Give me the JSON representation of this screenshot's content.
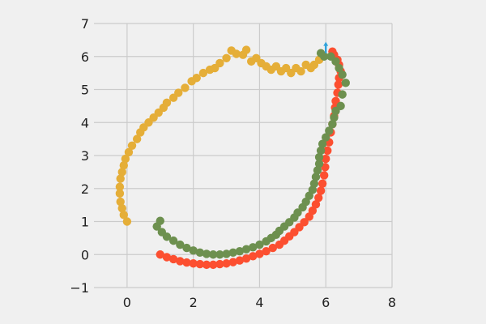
{
  "chart_data": {
    "type": "scatter",
    "title": "",
    "xlabel": "",
    "ylabel": "",
    "xlim": [
      -1,
      8
    ],
    "ylim": [
      -1,
      7
    ],
    "xticks": [
      "0",
      "2",
      "4",
      "6",
      "8"
    ],
    "yticks": [
      "−1",
      "0",
      "1",
      "2",
      "3",
      "4",
      "5",
      "6",
      "7"
    ],
    "xtick_values": [
      0,
      2,
      4,
      6,
      8
    ],
    "ytick_values": [
      -1,
      0,
      1,
      2,
      3,
      4,
      5,
      6,
      7
    ],
    "grid": true,
    "aspect": "equal",
    "series": [
      {
        "color": "#fc4f30",
        "points": [
          [
            1.0,
            0.0
          ],
          [
            1.2,
            -0.08
          ],
          [
            1.4,
            -0.14
          ],
          [
            1.6,
            -0.2
          ],
          [
            1.8,
            -0.24
          ],
          [
            2.0,
            -0.27
          ],
          [
            2.2,
            -0.29
          ],
          [
            2.4,
            -0.31
          ],
          [
            2.6,
            -0.31
          ],
          [
            2.8,
            -0.29
          ],
          [
            3.0,
            -0.27
          ],
          [
            3.2,
            -0.23
          ],
          [
            3.4,
            -0.18
          ],
          [
            3.6,
            -0.12
          ],
          [
            3.8,
            -0.05
          ],
          [
            4.0,
            0.02
          ],
          [
            4.2,
            0.1
          ],
          [
            4.4,
            0.2
          ],
          [
            4.6,
            0.3
          ],
          [
            4.75,
            0.42
          ],
          [
            4.9,
            0.55
          ],
          [
            5.05,
            0.68
          ],
          [
            5.2,
            0.83
          ],
          [
            5.35,
            0.98
          ],
          [
            5.5,
            1.15
          ],
          [
            5.6,
            1.33
          ],
          [
            5.7,
            1.52
          ],
          [
            5.78,
            1.72
          ],
          [
            5.85,
            1.93
          ],
          [
            5.9,
            2.15
          ],
          [
            5.95,
            2.4
          ],
          [
            5.98,
            2.65
          ],
          [
            6.0,
            2.9
          ],
          [
            6.05,
            3.15
          ],
          [
            6.1,
            3.4
          ],
          [
            6.15,
            3.7
          ],
          [
            6.2,
            3.95
          ],
          [
            6.25,
            4.2
          ],
          [
            6.28,
            4.45
          ],
          [
            6.3,
            4.65
          ],
          [
            6.35,
            4.9
          ],
          [
            6.38,
            5.15
          ],
          [
            6.4,
            5.35
          ],
          [
            6.45,
            5.55
          ],
          [
            6.4,
            5.75
          ],
          [
            6.35,
            5.9
          ],
          [
            6.25,
            6.05
          ],
          [
            6.2,
            6.15
          ]
        ]
      },
      {
        "color": "#e5ae38",
        "points": [
          [
            0.0,
            1.0
          ],
          [
            -0.1,
            1.2
          ],
          [
            -0.15,
            1.4
          ],
          [
            -0.2,
            1.6
          ],
          [
            -0.22,
            1.85
          ],
          [
            -0.22,
            2.05
          ],
          [
            -0.2,
            2.3
          ],
          [
            -0.15,
            2.5
          ],
          [
            -0.1,
            2.7
          ],
          [
            -0.05,
            2.9
          ],
          [
            0.05,
            3.1
          ],
          [
            0.15,
            3.3
          ],
          [
            0.3,
            3.5
          ],
          [
            0.4,
            3.7
          ],
          [
            0.5,
            3.85
          ],
          [
            0.65,
            4.0
          ],
          [
            0.8,
            4.15
          ],
          [
            0.95,
            4.3
          ],
          [
            1.1,
            4.45
          ],
          [
            1.2,
            4.6
          ],
          [
            1.4,
            4.75
          ],
          [
            1.55,
            4.9
          ],
          [
            1.75,
            5.05
          ],
          [
            1.95,
            5.25
          ],
          [
            2.1,
            5.35
          ],
          [
            2.3,
            5.5
          ],
          [
            2.5,
            5.6
          ],
          [
            2.65,
            5.65
          ],
          [
            2.8,
            5.8
          ],
          [
            3.0,
            5.95
          ],
          [
            3.15,
            6.18
          ],
          [
            3.3,
            6.08
          ],
          [
            3.5,
            6.05
          ],
          [
            3.6,
            6.2
          ],
          [
            3.75,
            5.85
          ],
          [
            3.9,
            5.95
          ],
          [
            4.05,
            5.8
          ],
          [
            4.2,
            5.7
          ],
          [
            4.35,
            5.6
          ],
          [
            4.5,
            5.7
          ],
          [
            4.65,
            5.55
          ],
          [
            4.8,
            5.65
          ],
          [
            4.95,
            5.5
          ],
          [
            5.1,
            5.65
          ],
          [
            5.25,
            5.55
          ],
          [
            5.4,
            5.75
          ],
          [
            5.55,
            5.65
          ],
          [
            5.65,
            5.75
          ],
          [
            5.8,
            5.9
          ],
          [
            5.9,
            6.0
          ]
        ]
      },
      {
        "color": "#6d904f",
        "points": [
          [
            1.0,
            1.02
          ],
          [
            0.9,
            0.85
          ],
          [
            1.05,
            0.68
          ],
          [
            1.2,
            0.54
          ],
          [
            1.4,
            0.42
          ],
          [
            1.6,
            0.3
          ],
          [
            1.8,
            0.2
          ],
          [
            2.0,
            0.12
          ],
          [
            2.2,
            0.06
          ],
          [
            2.4,
            0.02
          ],
          [
            2.6,
            0.0
          ],
          [
            2.8,
            0.0
          ],
          [
            3.0,
            0.02
          ],
          [
            3.2,
            0.06
          ],
          [
            3.4,
            0.1
          ],
          [
            3.6,
            0.16
          ],
          [
            3.8,
            0.22
          ],
          [
            4.0,
            0.3
          ],
          [
            4.2,
            0.4
          ],
          [
            4.35,
            0.5
          ],
          [
            4.5,
            0.6
          ],
          [
            4.6,
            0.72
          ],
          [
            4.75,
            0.85
          ],
          [
            4.9,
            0.98
          ],
          [
            5.05,
            1.12
          ],
          [
            5.15,
            1.27
          ],
          [
            5.3,
            1.43
          ],
          [
            5.4,
            1.6
          ],
          [
            5.5,
            1.78
          ],
          [
            5.6,
            1.96
          ],
          [
            5.65,
            2.15
          ],
          [
            5.7,
            2.35
          ],
          [
            5.75,
            2.55
          ],
          [
            5.8,
            2.75
          ],
          [
            5.8,
            2.95
          ],
          [
            5.85,
            3.15
          ],
          [
            5.9,
            3.35
          ],
          [
            6.0,
            3.55
          ],
          [
            6.1,
            3.75
          ],
          [
            6.2,
            3.95
          ],
          [
            6.25,
            4.15
          ],
          [
            6.3,
            4.35
          ],
          [
            6.45,
            4.5
          ],
          [
            6.5,
            4.85
          ],
          [
            6.6,
            5.2
          ],
          [
            6.5,
            5.45
          ],
          [
            6.4,
            5.65
          ],
          [
            6.3,
            5.85
          ],
          [
            6.15,
            6.0
          ],
          [
            5.95,
            6.0
          ],
          [
            5.85,
            6.1
          ]
        ]
      },
      {
        "color": "#30a2da",
        "points": [
          [
            6.0,
            6.25
          ]
        ]
      }
    ]
  }
}
